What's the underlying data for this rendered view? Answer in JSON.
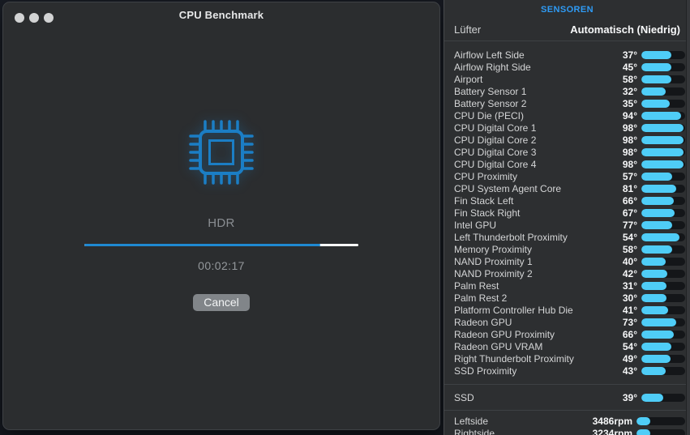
{
  "window": {
    "title": "CPU Benchmark",
    "benchmark": {
      "stage_label": "HDR",
      "progress_percent": 86,
      "elapsed_time": "00:02:17",
      "cancel_label": "Cancel"
    }
  },
  "sensors_panel": {
    "header": "SENSOREN",
    "fan_mode": {
      "label": "Lüfter",
      "value": "Automatisch (Niedrig)"
    },
    "temperature_sensors": [
      {
        "label": "Airflow Left Side",
        "value": "37°",
        "fill": 69
      },
      {
        "label": "Airflow Right Side",
        "value": "45°",
        "fill": 69
      },
      {
        "label": "Airport",
        "value": "58°",
        "fill": 68
      },
      {
        "label": "Battery Sensor 1",
        "value": "32°",
        "fill": 55
      },
      {
        "label": "Battery Sensor 2",
        "value": "35°",
        "fill": 64
      },
      {
        "label": "CPU Die (PECI)",
        "value": "94°",
        "fill": 90
      },
      {
        "label": "CPU Digital Core 1",
        "value": "98°",
        "fill": 96
      },
      {
        "label": "CPU Digital Core 2",
        "value": "98°",
        "fill": 96
      },
      {
        "label": "CPU Digital Core 3",
        "value": "98°",
        "fill": 96
      },
      {
        "label": "CPU Digital Core 4",
        "value": "98°",
        "fill": 96
      },
      {
        "label": "CPU Proximity",
        "value": "57°",
        "fill": 70
      },
      {
        "label": "CPU System Agent Core",
        "value": "81°",
        "fill": 80
      },
      {
        "label": "Fin Stack Left",
        "value": "66°",
        "fill": 74
      },
      {
        "label": "Fin Stack Right",
        "value": "67°",
        "fill": 75
      },
      {
        "label": "Intel GPU",
        "value": "77°",
        "fill": 71
      },
      {
        "label": "Left Thunderbolt Proximity",
        "value": "54°",
        "fill": 87
      },
      {
        "label": "Memory Proximity",
        "value": "58°",
        "fill": 71
      },
      {
        "label": "NAND Proximity 1",
        "value": "40°",
        "fill": 56
      },
      {
        "label": "NAND Proximity 2",
        "value": "42°",
        "fill": 60
      },
      {
        "label": "Palm Rest",
        "value": "31°",
        "fill": 57
      },
      {
        "label": "Palm Rest 2",
        "value": "30°",
        "fill": 57
      },
      {
        "label": "Platform Controller Hub Die",
        "value": "41°",
        "fill": 61
      },
      {
        "label": "Radeon GPU",
        "value": "73°",
        "fill": 79
      },
      {
        "label": "Radeon GPU Proximity",
        "value": "66°",
        "fill": 74
      },
      {
        "label": "Radeon GPU VRAM",
        "value": "54°",
        "fill": 69
      },
      {
        "label": "Right Thunderbolt Proximity",
        "value": "49°",
        "fill": 66
      },
      {
        "label": "SSD Proximity",
        "value": "43°",
        "fill": 55
      }
    ],
    "ssd_sensors": [
      {
        "label": "SSD",
        "value": "39°",
        "fill": 50
      }
    ],
    "fan_speeds": [
      {
        "label": "Leftside",
        "value": "3486rpm",
        "fill": 28
      },
      {
        "label": "Rightside",
        "value": "3234rpm",
        "fill": 28
      }
    ]
  },
  "colors": {
    "accent-blue": "#1f89d2",
    "chip-blue": "#1b7ec5",
    "bar-blue": "#4fcdf7",
    "header-blue": "#2e9bf5"
  }
}
